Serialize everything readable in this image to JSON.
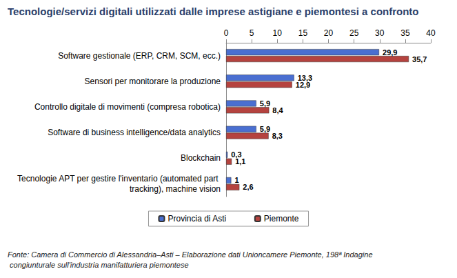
{
  "chart_data": {
    "type": "bar",
    "title": "Tecnologie/servizi digitali utilizzati dalle imprese astigiane e piemontesi a confronto",
    "categories": [
      "Software gestionale (ERP, CRM, SCM, ecc.)",
      "Sensori per monitorare la produzione",
      "Controllo digitale di movimenti (compresa robotica)",
      "Software di business intelligence/data analytics",
      "Blockchain",
      "Tecnologie APT per gestire l'inventario (automated part tracking), machine vision"
    ],
    "series": [
      {
        "name": "Provincia di Asti",
        "color": "#4a6fd1",
        "values": [
          29.9,
          13.3,
          5.9,
          5.9,
          0.3,
          1
        ],
        "value_labels": [
          "29,9",
          "13,3",
          "5,9",
          "5,9",
          "0,3",
          "1"
        ]
      },
      {
        "name": "Piemonte",
        "color": "#b5433f",
        "values": [
          35.7,
          12.9,
          8.4,
          8.3,
          1.1,
          2.6
        ],
        "value_labels": [
          "35,7",
          "12,9",
          "8,4",
          "8,3",
          "1,1",
          "2,6"
        ]
      }
    ],
    "xlim": [
      0,
      40
    ],
    "xticks": [
      0,
      5,
      10,
      15,
      20,
      25,
      30,
      35,
      40
    ],
    "orientation": "horizontal",
    "data_labels": true,
    "grid": false,
    "legend": "bottom",
    "annotations": [
      "Fonte: Camera di Commercio di Alessandria–Asti – Elaborazione dati Unioncamere Piemonte, 198ª Indagine congiunturale sull'industria manifatturiera piemontese"
    ]
  }
}
